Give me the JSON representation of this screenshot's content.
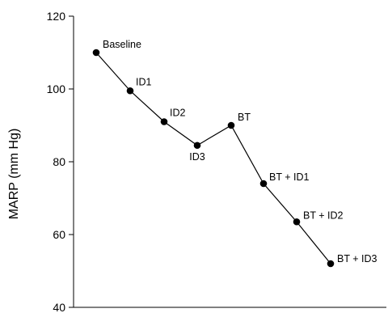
{
  "chart_data": {
    "type": "line",
    "title": "",
    "xlabel": "",
    "ylabel": "MARP (mm Hg)",
    "ylim": [
      40,
      120
    ],
    "yticks": [
      40,
      60,
      80,
      100,
      120
    ],
    "grid": false,
    "series": [
      {
        "points": [
          {
            "label": "Baseline",
            "y": 110
          },
          {
            "label": "ID1",
            "y": 99.5
          },
          {
            "label": "ID2",
            "y": 91
          },
          {
            "label": "ID3",
            "y": 84.5
          },
          {
            "label": "BT",
            "y": 90
          },
          {
            "label": "BT + ID1",
            "y": 74
          },
          {
            "label": "BT + ID2",
            "y": 63.5
          },
          {
            "label": "BT + ID3",
            "y": 52
          }
        ]
      }
    ]
  }
}
